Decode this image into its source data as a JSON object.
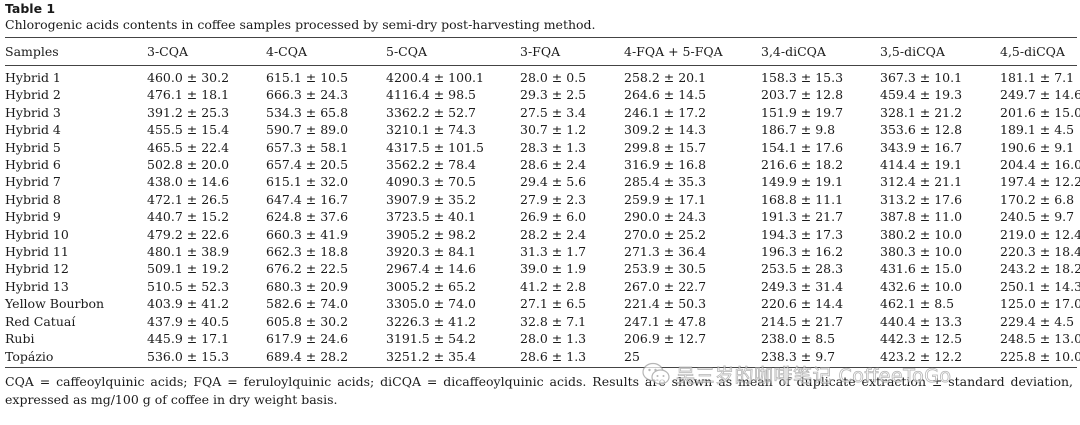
{
  "table": {
    "label": "Table 1",
    "caption": "Chlorogenic acids contents in coffee samples processed by semi-dry post-harvesting method.",
    "columns": [
      "Samples",
      "3-CQA",
      "4-CQA",
      "5-CQA",
      "3-FQA",
      "4-FQA + 5-FQA",
      "3,4-diCQA",
      "3,5-diCQA",
      "4,5-diCQA"
    ],
    "rows": [
      [
        "Hybrid 1",
        "460.0 ± 30.2",
        "615.1 ± 10.5",
        "4200.4 ± 100.1",
        "28.0 ± 0.5",
        "258.2 ± 20.1",
        "158.3 ± 15.3",
        "367.3 ± 10.1",
        "181.1 ± 7.1"
      ],
      [
        "Hybrid 2",
        "476.1 ± 18.1",
        "666.3 ± 24.3",
        "4116.4 ± 98.5",
        "29.3 ± 2.5",
        "264.6 ± 14.5",
        "203.7 ± 12.8",
        "459.4 ± 19.3",
        "249.7 ± 14.6"
      ],
      [
        "Hybrid 3",
        "391.2 ± 25.3",
        "534.3 ± 65.8",
        "3362.2 ± 52.7",
        "27.5 ± 3.4",
        "246.1 ± 17.2",
        "151.9 ± 19.7",
        "328.1 ± 21.2",
        "201.6 ± 15.0"
      ],
      [
        "Hybrid 4",
        "455.5 ± 15.4",
        "590.7 ± 89.0",
        "3210.1 ± 74.3",
        "30.7 ± 1.2",
        "309.2 ± 14.3",
        "186.7 ± 9.8",
        "353.6 ± 12.8",
        "189.1 ± 4.5"
      ],
      [
        "Hybrid 5",
        "465.5 ± 22.4",
        "657.3 ± 58.1",
        "4317.5 ± 101.5",
        "28.3 ± 1.3",
        "299.8 ± 15.7",
        "154.1 ± 17.6",
        "343.9 ± 16.7",
        "190.6 ± 9.1"
      ],
      [
        "Hybrid 6",
        "502.8 ± 20.0",
        "657.4 ± 20.5",
        "3562.2 ± 78.4",
        "28.6 ± 2.4",
        "316.9 ± 16.8",
        "216.6 ± 18.2",
        "414.4 ± 19.1",
        "204.4 ± 16.0"
      ],
      [
        "Hybrid 7",
        "438.0 ± 14.6",
        "615.1 ± 32.0",
        "4090.3 ± 70.5",
        "29.4 ± 5.6",
        "285.4 ± 35.3",
        "149.9 ± 19.1",
        "312.4 ± 21.1",
        "197.4 ± 12.2"
      ],
      [
        "Hybrid 8",
        "472.1 ± 26.5",
        "647.4 ± 16.7",
        "3907.9 ± 35.2",
        "27.9 ± 2.3",
        "259.9 ± 17.1",
        "168.8 ± 11.1",
        "313.2 ± 17.6",
        "170.2 ± 6.8"
      ],
      [
        "Hybrid 9",
        "440.7 ± 15.2",
        "624.8 ± 37.6",
        "3723.5 ± 40.1",
        "26.9 ± 6.0",
        "290.0 ± 24.3",
        "191.3 ± 21.7",
        "387.8 ± 11.0",
        "240.5 ± 9.7"
      ],
      [
        "Hybrid 10",
        "479.2 ± 22.6",
        "660.3 ± 41.9",
        "3905.2 ± 98.2",
        "28.2 ± 2.4",
        "270.0 ± 25.2",
        "194.3 ± 17.3",
        "380.2 ± 10.0",
        "219.0 ± 12.4"
      ],
      [
        "Hybrid 11",
        "480.1 ± 38.9",
        "662.3 ± 18.8",
        "3920.3 ± 84.1",
        "31.3 ± 1.7",
        "271.3 ± 36.4",
        "196.3 ± 16.2",
        "380.3 ± 10.0",
        "220.3 ± 18.4"
      ],
      [
        "Hybrid 12",
        "509.1 ± 19.2",
        "676.2 ± 22.5",
        "2967.4 ± 14.6",
        "39.0 ± 1.9",
        "253.9 ± 30.5",
        "253.5 ± 28.3",
        "431.6 ± 15.0",
        "243.2 ± 18.2"
      ],
      [
        "Hybrid 13",
        "510.5 ± 52.3",
        "680.3 ± 20.9",
        "3005.2 ± 65.2",
        "41.2 ± 2.8",
        "267.0 ± 22.7",
        "249.3 ± 31.4",
        "432.6 ± 10.0",
        "250.1 ± 14.3"
      ],
      [
        "Yellow Bourbon",
        "403.9 ± 41.2",
        "582.6 ± 74.0",
        "3305.0 ± 74.0",
        "27.1 ± 6.5",
        "221.4 ± 50.3",
        "220.6 ± 14.4",
        "462.1 ± 8.5",
        "125.0 ± 17.0"
      ],
      [
        "Red Catuaí",
        "437.9 ± 40.5",
        "605.8 ± 30.2",
        "3226.3 ± 41.2",
        "32.8 ± 7.1",
        "247.1 ± 47.8",
        "214.5 ± 21.7",
        "440.4 ± 13.3",
        "229.4 ± 4.5"
      ],
      [
        "Rubi",
        "445.9 ± 17.1",
        "617.9 ± 24.6",
        "3191.5 ± 54.2",
        "28.0 ± 1.3",
        "206.9 ± 12.7",
        "238.0 ± 8.5",
        "442.3 ± 12.5",
        "248.5 ± 13.0"
      ],
      [
        "Topázio",
        "536.0 ± 15.3",
        "689.4 ± 28.2",
        "3251.2 ± 35.4",
        "28.6 ± 1.3",
        "25",
        "238.3 ± 9.7",
        "423.2 ± 12.2",
        "225.8 ± 10.0"
      ]
    ],
    "footnote": "CQA = caffeoylquinic acids; FQA = feruloylquinic acids; diCQA = dicaffeoylquinic acids. Results are shown as mean of duplicate extraction ± standard deviation, expressed as mg/100 g of coffee in dry weight basis."
  },
  "watermark": {
    "text": "吴三岁的咖啡笔记 CoffeeToGo"
  }
}
